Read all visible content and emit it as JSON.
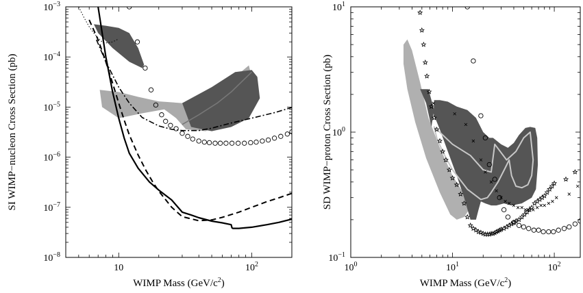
{
  "chart_data": [
    {
      "type": "line",
      "title": "",
      "xlabel": "WIMP Mass (GeV/c",
      "xlabel_sup": "2",
      "xlabel_end": ")",
      "ylabel": "SI WIMP−nucleon Cross Section (pb)",
      "xscale": "log",
      "yscale": "log",
      "xlim": [
        4,
        200
      ],
      "ylim": [
        1e-08,
        0.001
      ],
      "grid": false,
      "legend": "none",
      "xticks": [
        {
          "base": "10",
          "exp": ""
        },
        {
          "base": "10",
          "exp": "2"
        }
      ],
      "xtick_values": [
        10,
        100
      ],
      "yticks": [
        {
          "base": "10",
          "exp": "−8"
        },
        {
          "base": "10",
          "exp": "−7"
        },
        {
          "base": "10",
          "exp": "−6"
        },
        {
          "base": "10",
          "exp": "−5"
        },
        {
          "base": "10",
          "exp": "−4"
        },
        {
          "base": "10",
          "exp": "−3"
        }
      ],
      "ytick_values": [
        1e-08,
        1e-07,
        1e-06,
        1e-05,
        0.0001,
        0.001
      ],
      "regions": [
        {
          "fill": "#555555",
          "points": [
            [
              6.5,
              0.00045
            ],
            [
              8,
              0.00042
            ],
            [
              10,
              0.00038
            ],
            [
              12,
              0.0003
            ],
            [
              14,
              0.00015
            ],
            [
              15.5,
              7e-05
            ],
            [
              15,
              6e-05
            ],
            [
              12,
              8e-05
            ],
            [
              9,
              0.00015
            ],
            [
              7,
              0.0003
            ]
          ]
        },
        {
          "fill": "#aaaaaa",
          "points": [
            [
              7.2,
              2.2e-05
            ],
            [
              10,
              2e-05
            ],
            [
              14,
              1.6e-05
            ],
            [
              20,
              1.3e-05
            ],
            [
              30,
              1.2e-05
            ],
            [
              50,
              2e-05
            ],
            [
              75,
              4e-05
            ],
            [
              95,
              6.8e-05
            ],
            [
              100,
              4e-05
            ],
            [
              90,
              1.2e-05
            ],
            [
              70,
              5.5e-06
            ],
            [
              45,
              3.3e-06
            ],
            [
              32,
              3.6e-06
            ],
            [
              27,
              6e-06
            ],
            [
              22,
              9e-06
            ],
            [
              15,
              7.5e-06
            ],
            [
              10,
              6e-06
            ],
            [
              7.5,
              1e-05
            ]
          ]
        },
        {
          "fill": "#555555",
          "points": [
            [
              30,
              1.2e-05
            ],
            [
              50,
              2.5e-05
            ],
            [
              75,
              5e-05
            ],
            [
              100,
              5.5e-05
            ],
            [
              110,
              4e-05
            ],
            [
              115,
              1.5e-05
            ],
            [
              95,
              6e-06
            ],
            [
              70,
              4e-06
            ],
            [
              50,
              3.3e-06
            ],
            [
              35,
              4e-06
            ]
          ]
        }
      ],
      "series": [
        {
          "style": "solid-thick",
          "x": [
            7.0,
            8,
            9,
            10,
            11,
            12,
            14,
            17,
            20,
            25,
            30,
            35,
            40,
            50,
            60,
            70,
            71,
            72,
            80,
            100,
            130,
            160,
            200
          ],
          "y": [
            0.001,
            0.0001,
            2e-05,
            6e-06,
            2.4e-06,
            1.2e-06,
            6e-07,
            3.2e-07,
            2.2e-07,
            1.4e-07,
            8e-08,
            7e-08,
            6.2e-08,
            5.3e-08,
            4.9e-08,
            4.5e-08,
            3.9e-08,
            3.8e-08,
            3.8e-08,
            4e-08,
            4.5e-08,
            5e-08,
            5.8e-08
          ]
        },
        {
          "style": "dashed-thick",
          "x": [
            6.0,
            7,
            8,
            9,
            10,
            11,
            12,
            14,
            16,
            18,
            20,
            25,
            30,
            40,
            50,
            60,
            80,
            100,
            130,
            160,
            200
          ],
          "y": [
            0.00055,
            0.00022,
            8e-05,
            3e-05,
            1.2e-05,
            5.5e-06,
            2.8e-06,
            1.1e-06,
            5.5e-07,
            3.2e-07,
            2.1e-07,
            1e-07,
            6.5e-08,
            5.4e-08,
            5.6e-08,
            6.3e-08,
            8e-08,
            1e-07,
            1.3e-07,
            1.55e-07,
            1.9e-07
          ]
        },
        {
          "style": "dashdot",
          "x": [
            6.8,
            8,
            10,
            12,
            15,
            20,
            25,
            30,
            40,
            50,
            70,
            100,
            150,
            200
          ],
          "y": [
            0.00022,
            8e-05,
            2.5e-05,
            1.2e-05,
            6.2e-06,
            4.2e-06,
            3.6e-06,
            3.4e-06,
            3.4e-06,
            3.8e-06,
            4.8e-06,
            6e-06,
            7.8e-06,
            9.8e-06
          ]
        },
        {
          "style": "dotted",
          "x": [
            5.0,
            5.5,
            6,
            6.5,
            7,
            7.5,
            8,
            9,
            10
          ],
          "y": [
            0.001,
            0.0006,
            0.0004,
            0.0003,
            0.00024,
            0.0002,
            0.00019,
            0.0002,
            0.00023
          ]
        },
        {
          "style": "line-grey",
          "x": [
            30,
            40,
            55,
            70,
            85,
            100
          ],
          "y": [
            4.5e-06,
            7e-06,
            1.2e-05,
            2e-05,
            3.3e-05,
            5e-05
          ]
        }
      ],
      "markers": {
        "symbol": "circle",
        "x": [
          12,
          13.8,
          15.8,
          17.5,
          19,
          21,
          22.5,
          24.5,
          27,
          30,
          33,
          36,
          40,
          44,
          48,
          53,
          58,
          64,
          71,
          79,
          88,
          98,
          108,
          120,
          133,
          148,
          165,
          185,
          200
        ],
        "y": [
          0.001,
          0.0002,
          6e-05,
          2.2e-05,
          1.1e-05,
          7e-06,
          5.2e-06,
          4.3e-06,
          3.7e-06,
          3e-06,
          2.6e-06,
          2.3e-06,
          2.1e-06,
          2e-06,
          1.95e-06,
          1.9e-06,
          1.9e-06,
          1.9e-06,
          1.9e-06,
          1.9e-06,
          1.9e-06,
          1.95e-06,
          2e-06,
          2.1e-06,
          2.2e-06,
          2.4e-06,
          2.6e-06,
          2.9e-06,
          3.2e-06
        ]
      }
    },
    {
      "type": "line",
      "title": "",
      "xlabel": "WIMP Mass (GeV/c",
      "xlabel_sup": "2",
      "xlabel_end": ")",
      "ylabel": "SD WIMP−proton Cross Section (pb)",
      "xscale": "log",
      "yscale": "log",
      "xlim": [
        1,
        180
      ],
      "ylim": [
        0.1,
        10
      ],
      "grid": false,
      "legend": "none",
      "xticks": [
        {
          "base": "10",
          "exp": "0"
        },
        {
          "base": "10",
          "exp": "1"
        },
        {
          "base": "10",
          "exp": "2"
        }
      ],
      "xtick_values": [
        1,
        10,
        100
      ],
      "yticks": [
        {
          "base": "10",
          "exp": "−1"
        },
        {
          "base": "10",
          "exp": "0"
        },
        {
          "base": "10",
          "exp": "1"
        }
      ],
      "ytick_values": [
        0.1,
        1,
        10
      ],
      "regions": [
        {
          "fill": "#b0b0b0",
          "points": [
            [
              3.3,
              5.0
            ],
            [
              3.6,
              5.5
            ],
            [
              4.0,
              4.5
            ],
            [
              4.8,
              2.5
            ],
            [
              5.8,
              1.3
            ],
            [
              7.5,
              0.75
            ],
            [
              10,
              0.45
            ],
            [
              13,
              0.32
            ],
            [
              15.5,
              0.3
            ],
            [
              15,
              0.25
            ],
            [
              13,
              0.21
            ],
            [
              11,
              0.2
            ],
            [
              9.5,
              0.22
            ],
            [
              7.5,
              0.33
            ],
            [
              5.5,
              0.62
            ],
            [
              4.3,
              1.2
            ],
            [
              3.6,
              2.2
            ],
            [
              3.3,
              3.5
            ]
          ]
        },
        {
          "fill": "#555555",
          "points": [
            [
              6.6,
              1.8
            ],
            [
              7.5,
              1.8
            ],
            [
              9,
              1.75
            ],
            [
              11,
              1.6
            ],
            [
              14,
              1.5
            ],
            [
              17,
              1.3
            ],
            [
              20,
              1.0
            ],
            [
              23,
              0.9
            ],
            [
              25,
              0.9
            ],
            [
              30,
              0.8
            ],
            [
              35,
              0.75
            ],
            [
              40,
              0.82
            ],
            [
              45,
              0.95
            ],
            [
              52,
              1.08
            ],
            [
              58,
              1.1
            ],
            [
              65,
              1.08
            ],
            [
              68,
              0.9
            ],
            [
              69,
              0.55
            ],
            [
              66,
              0.35
            ],
            [
              60,
              0.3
            ],
            [
              48,
              0.27
            ],
            [
              38,
              0.26
            ],
            [
              32,
              0.27
            ],
            [
              27,
              0.26
            ],
            [
              24,
              0.26
            ],
            [
              21,
              0.27
            ],
            [
              19,
              0.28
            ],
            [
              18,
              0.24
            ],
            [
              17,
              0.2
            ],
            [
              15,
              0.2
            ],
            [
              13,
              0.3
            ],
            [
              11,
              0.45
            ],
            [
              9,
              0.7
            ],
            [
              7.5,
              1.05
            ],
            [
              6.5,
              1.4
            ]
          ]
        },
        {
          "fill": "#555555",
          "points": [
            [
              4.8,
              2.2
            ],
            [
              5.8,
              2.2
            ],
            [
              6.6,
              1.5
            ],
            [
              6.2,
              1.1
            ],
            [
              5.5,
              1.7
            ]
          ]
        }
      ],
      "series": [
        {
          "style": "line-light",
          "closed": true,
          "x": [
            6.6,
            10,
            15,
            20,
            24,
            26,
            34,
            42,
            50,
            58,
            62,
            60,
            55,
            48,
            42,
            38,
            36,
            33,
            28,
            24,
            22,
            19,
            14,
            10,
            8,
            7
          ],
          "y": [
            1.1,
            0.8,
            0.65,
            0.5,
            0.48,
            0.8,
            0.6,
            0.7,
            0.9,
            1.0,
            0.6,
            0.45,
            0.38,
            0.36,
            0.37,
            0.45,
            0.6,
            0.52,
            0.4,
            0.33,
            0.3,
            0.29,
            0.35,
            0.5,
            0.7,
            0.9
          ]
        }
      ],
      "markers": [
        {
          "symbol": "circle",
          "x": [
            14,
            16,
            19,
            21,
            23,
            26,
            29,
            32,
            35,
            40,
            45,
            50,
            56,
            63,
            70,
            78,
            88,
            98,
            110,
            125,
            140,
            160,
            180
          ],
          "y": [
            10,
            3.7,
            1.35,
            0.9,
            0.55,
            0.42,
            0.3,
            0.24,
            0.21,
            0.19,
            0.18,
            0.175,
            0.17,
            0.165,
            0.165,
            0.16,
            0.16,
            0.16,
            0.165,
            0.17,
            0.175,
            0.185,
            0.195
          ]
        },
        {
          "symbol": "star",
          "x": [
            4.8,
            5.0,
            5.2,
            5.4,
            5.6,
            5.9,
            6.2,
            6.6,
            7.0,
            7.5,
            8.0,
            8.6,
            9.3,
            10,
            11,
            12,
            13,
            14,
            15,
            16,
            17,
            18,
            19,
            20,
            21,
            22,
            23,
            24,
            25,
            26,
            27,
            28,
            29,
            30,
            32,
            34,
            36,
            38,
            40,
            42,
            45,
            48,
            51,
            54,
            57,
            60,
            64,
            68,
            72,
            76,
            80,
            85,
            90,
            95,
            100,
            130,
            160
          ],
          "y": [
            9,
            6.5,
            5.0,
            3.6,
            2.8,
            2.1,
            1.6,
            1.3,
            1.05,
            0.85,
            0.7,
            0.6,
            0.5,
            0.43,
            0.38,
            0.32,
            0.27,
            0.21,
            0.18,
            0.17,
            0.165,
            0.16,
            0.158,
            0.155,
            0.153,
            0.153,
            0.153,
            0.155,
            0.155,
            0.157,
            0.16,
            0.162,
            0.165,
            0.167,
            0.17,
            0.175,
            0.18,
            0.185,
            0.19,
            0.195,
            0.2,
            0.21,
            0.22,
            0.23,
            0.24,
            0.25,
            0.27,
            0.28,
            0.29,
            0.3,
            0.31,
            0.33,
            0.35,
            0.37,
            0.39,
            0.42,
            0.48
          ]
        },
        {
          "symbol": "cross",
          "x": [
            6.5,
            10.5,
            13.5,
            16,
            19,
            21,
            24,
            27,
            30,
            33,
            36,
            40,
            44,
            48,
            52,
            56,
            62,
            68,
            74,
            80,
            88,
            96,
            105,
            140,
            170
          ],
          "y": [
            1.7,
            1.4,
            1.15,
            0.85,
            0.6,
            0.48,
            0.4,
            0.34,
            0.3,
            0.28,
            0.27,
            0.26,
            0.25,
            0.25,
            0.24,
            0.24,
            0.24,
            0.25,
            0.26,
            0.26,
            0.27,
            0.28,
            0.3,
            0.32,
            0.37
          ]
        }
      ]
    }
  ]
}
